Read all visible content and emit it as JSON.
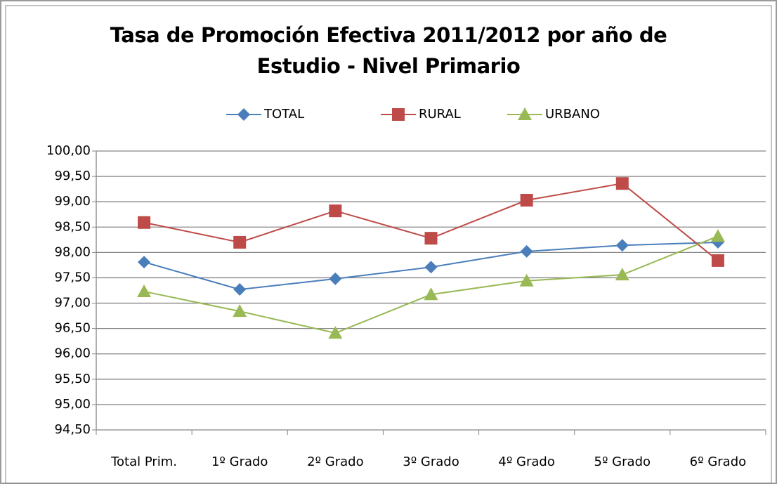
{
  "chart_data": {
    "type": "line",
    "title": "Tasa de Promoción Efectiva 2011/2012 por año de Estudio - Nivel Primario",
    "categories": [
      "Total Prim.",
      "1º Grado",
      "2º Grado",
      "3º Grado",
      "4º Grado",
      "5º Grado",
      "6º Grado"
    ],
    "series": [
      {
        "name": "TOTAL",
        "color": "#4a7ebb",
        "marker": "diamond",
        "values": [
          97.81,
          97.27,
          97.48,
          97.71,
          98.02,
          98.14,
          98.2
        ]
      },
      {
        "name": "RURAL",
        "color": "#be4b48",
        "marker": "square",
        "values": [
          98.59,
          98.2,
          98.82,
          98.28,
          99.03,
          99.36,
          97.84
        ]
      },
      {
        "name": "URBANO",
        "color": "#98b954",
        "marker": "triangle",
        "values": [
          97.23,
          96.84,
          96.41,
          97.17,
          97.44,
          97.56,
          98.32
        ]
      }
    ],
    "ylim": [
      94.5,
      100
    ],
    "yticks": [
      {
        "value": 94.5,
        "label": "94,50"
      },
      {
        "value": 95,
        "label": "95,00"
      },
      {
        "value": 95.5,
        "label": "95,50"
      },
      {
        "value": 96,
        "label": "96,00"
      },
      {
        "value": 96.5,
        "label": "96,50"
      },
      {
        "value": 97,
        "label": "97,00"
      },
      {
        "value": 97.5,
        "label": "97,50"
      },
      {
        "value": 98,
        "label": "98,00"
      },
      {
        "value": 98.5,
        "label": "98,50"
      },
      {
        "value": 99,
        "label": "99,00"
      },
      {
        "value": 99.5,
        "label": "99,50"
      },
      {
        "value": 100,
        "label": "100,00"
      }
    ],
    "grid": true,
    "legend": "top"
  }
}
